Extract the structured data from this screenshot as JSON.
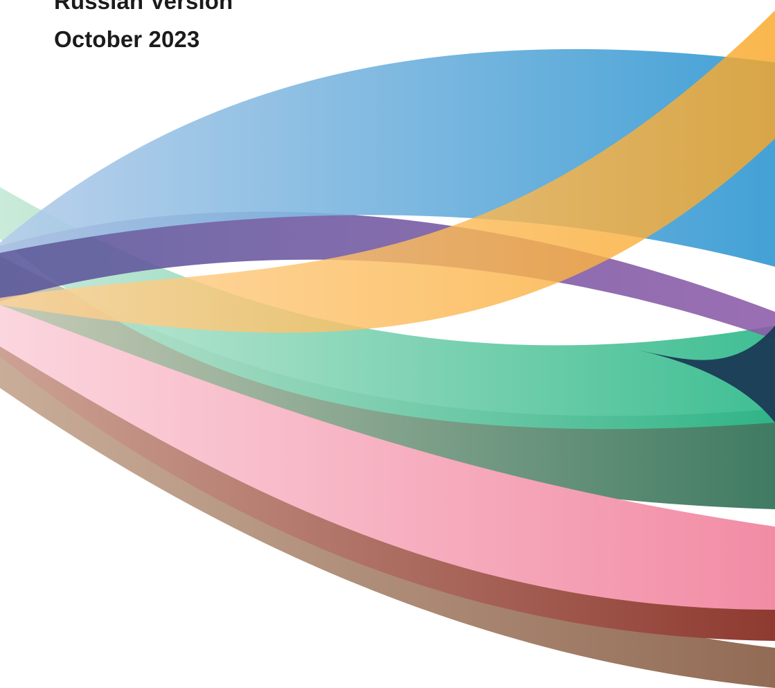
{
  "cover": {
    "version_label": "Russian Version",
    "date_label": "October 2023"
  },
  "ribbons": [
    {
      "name": "blue",
      "from": "#b5cdea",
      "to": "#2f97d1"
    },
    {
      "name": "orange",
      "from": "#ffd49a",
      "to": "#f9a727"
    },
    {
      "name": "teal-green",
      "from": "#c6e9d7",
      "to": "#2fb98a"
    },
    {
      "name": "purple",
      "from": "#57559a",
      "to": "#8d5aa8"
    },
    {
      "name": "dark-green",
      "from": "#c2c7b0",
      "to": "#2f6f55"
    },
    {
      "name": "brown-rose",
      "from": "#cca294",
      "to": "#8e3a30"
    },
    {
      "name": "brown",
      "from": "#c9ad99",
      "to": "#926b55"
    },
    {
      "name": "pink",
      "from": "#fbd6de",
      "to": "#f28ca5"
    }
  ]
}
